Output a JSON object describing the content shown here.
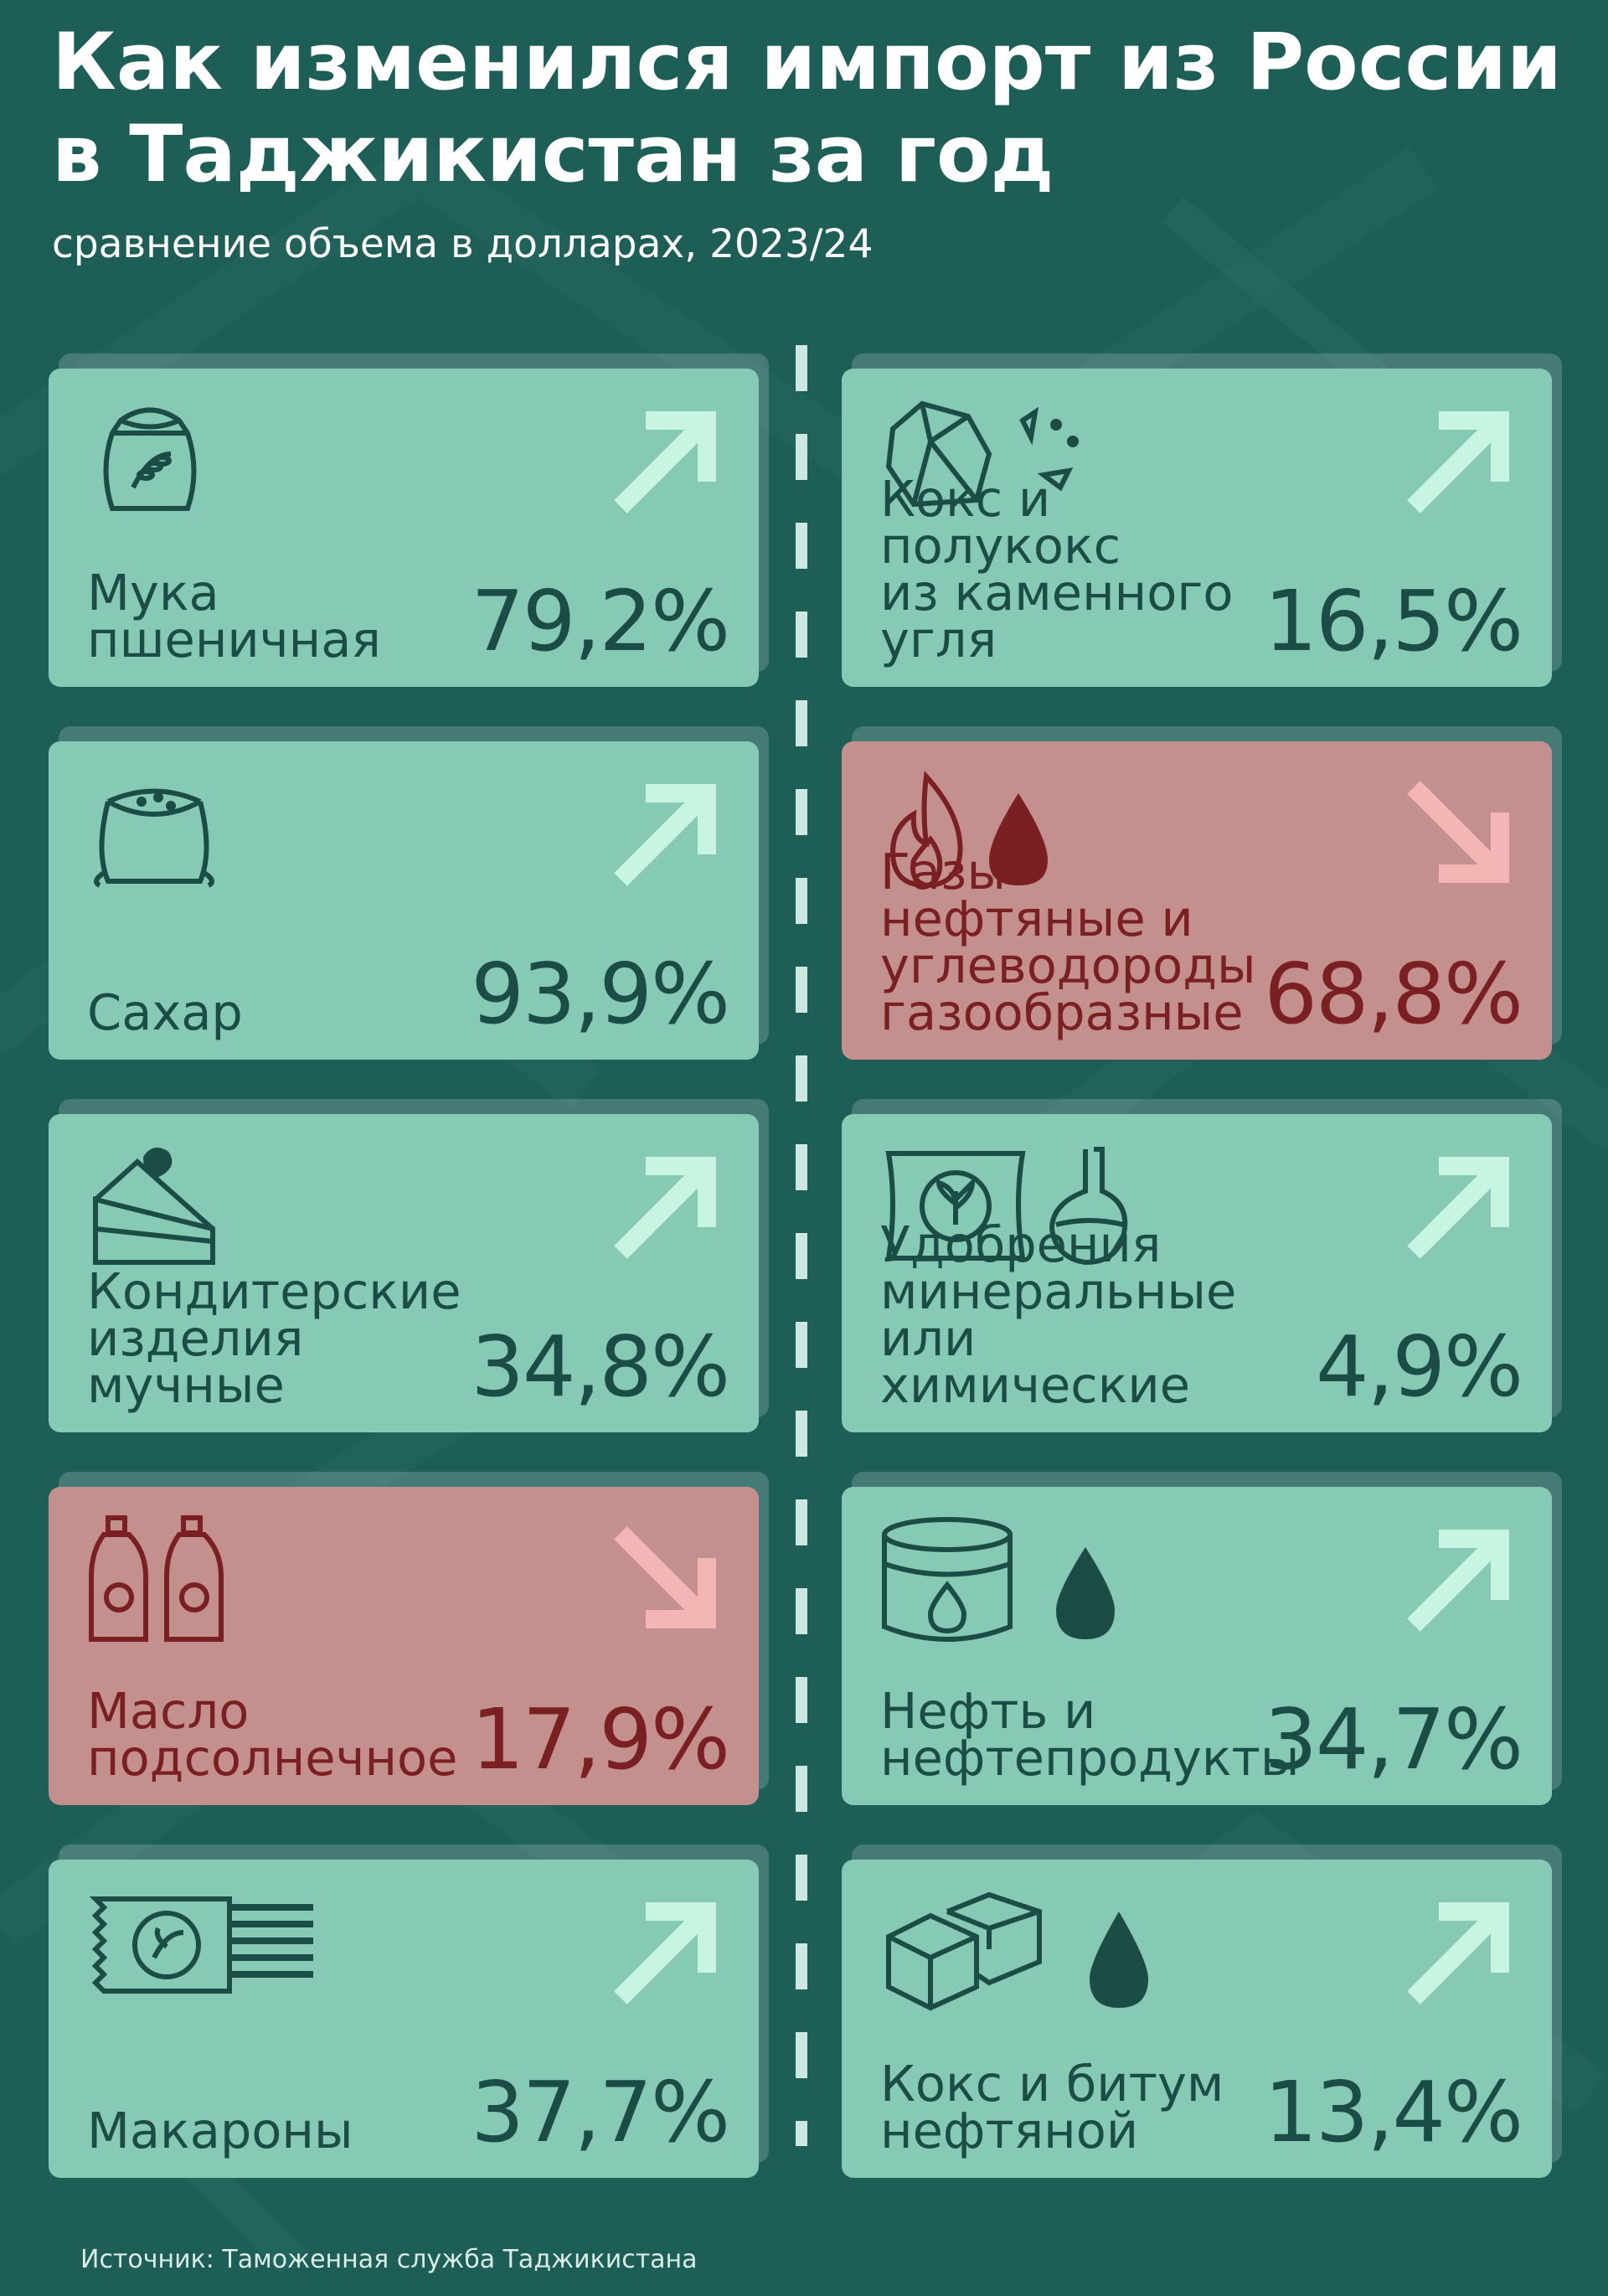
{
  "title_line1": "Как изменился импорт из России",
  "title_line2": "в Таджикистан за год",
  "subtitle": "сравнение объема в долларах, 2023/24",
  "source": "Источник: Таможенная служба Таджикистана",
  "colors": {
    "background": "#1d5e56",
    "increase_card": "#86c9b5",
    "decrease_card": "#c4908e",
    "increase_text": "#1b4d46",
    "decrease_text": "#7a1f22",
    "increase_arrow": "#c8f5e2",
    "decrease_arrow": "#f4b6b4"
  },
  "items": [
    {
      "label": "Мука\nпшеничная",
      "value": "79,2%",
      "direction": "up",
      "icon": "flour-sack-icon"
    },
    {
      "label": "Кокс и полукокс\nиз каменного\nугля",
      "value": "16,5%",
      "direction": "up",
      "icon": "coal-icon"
    },
    {
      "label": "Сахар",
      "value": "93,9%",
      "direction": "up",
      "icon": "sugar-sack-icon"
    },
    {
      "label": "Газы нефтяные и\nуглеводороды\nгазообразные",
      "value": "68,8%",
      "direction": "down",
      "icon": "gas-flame-drop-icon"
    },
    {
      "label": "Кондитерские\nизделия\nмучные",
      "value": "34,8%",
      "direction": "up",
      "icon": "cake-icon"
    },
    {
      "label": "Удобрения\nминеральные\nили химические",
      "value": "4,9%",
      "direction": "up",
      "icon": "fertilizer-flask-icon"
    },
    {
      "label": "Масло\nподсолнечное",
      "value": "17,9%",
      "direction": "down",
      "icon": "oil-bottles-icon"
    },
    {
      "label": "Нефть и\nнефтепродукты",
      "value": "34,7%",
      "direction": "up",
      "icon": "oil-barrel-drop-icon"
    },
    {
      "label": "Макароны",
      "value": "37,7%",
      "direction": "up",
      "icon": "pasta-pack-icon"
    },
    {
      "label": "Кокс и битум\nнефтяной",
      "value": "13,4%",
      "direction": "up",
      "icon": "bitumen-cubes-drop-icon"
    }
  ]
}
